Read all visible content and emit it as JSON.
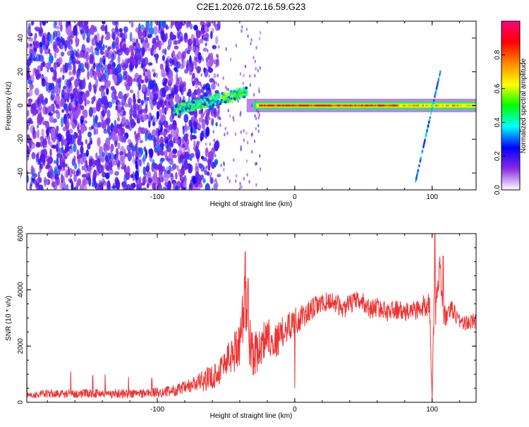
{
  "figure": {
    "title": "C2E1.2026.072.16.59.G23"
  },
  "chart_data": [
    {
      "type": "heatmap",
      "title": "C2E1.2026.072.16.59.G23",
      "xlabel": "Height of straight line (km)",
      "ylabel": "Frequency (Hz)",
      "xlim": [
        -195,
        132
      ],
      "ylim": [
        -50,
        50
      ],
      "xticks": [
        -100,
        0,
        100
      ],
      "yticks": [
        -40,
        -20,
        0,
        20,
        40
      ],
      "colorbar": {
        "label": "Normalized spectral amplitude",
        "range": [
          0.0,
          1.0
        ],
        "ticks": [
          0.0,
          0.2,
          0.4,
          0.6,
          0.8
        ],
        "tick_labels": [
          "0.0",
          "0.2",
          "0.4",
          "0.6",
          "0.8"
        ],
        "colormap": [
          "#ffffff",
          "#8a2be2",
          "#0000ff",
          "#00ffff",
          "#00ff00",
          "#ffff00",
          "#ff8800",
          "#ff0000",
          "#ff0080"
        ]
      },
      "features": [
        {
          "name": "background noise",
          "x_range": [
            -195,
            -65
          ],
          "freq_range": [
            -50,
            50
          ],
          "level": 0.2
        },
        {
          "name": "onset band",
          "x_range": [
            -88,
            -35
          ],
          "freq_center": [
            -3,
            8
          ],
          "level": 0.45
        },
        {
          "name": "carrier line",
          "x_range": [
            -30,
            132
          ],
          "freq_center": 0,
          "level": 0.85
        },
        {
          "name": "streak",
          "x_range": [
            88,
            106
          ],
          "freq_range": [
            -45,
            20
          ],
          "level": 0.3
        }
      ]
    },
    {
      "type": "line",
      "xlabel": "Height of straight line (km)",
      "ylabel": "SNR (10 * v/v)",
      "xlim": [
        -195,
        132
      ],
      "ylim": [
        0,
        6000
      ],
      "xticks": [
        -100,
        0,
        100
      ],
      "yticks": [
        0,
        2000,
        4000,
        6000
      ],
      "line_color": "#ee3333",
      "series": [
        {
          "name": "SNR",
          "x": [
            -195,
            -180,
            -160,
            -140,
            -120,
            -100,
            -90,
            -80,
            -70,
            -60,
            -55,
            -50,
            -45,
            -40,
            -36,
            -33,
            -30,
            -25,
            -20,
            -15,
            -10,
            -5,
            0,
            5,
            10,
            15,
            20,
            25,
            30,
            35,
            40,
            45,
            50,
            55,
            60,
            65,
            70,
            75,
            80,
            85,
            90,
            95,
            98,
            100,
            102,
            104,
            106,
            108,
            110,
            115,
            120,
            125,
            132
          ],
          "y": [
            250,
            300,
            300,
            320,
            300,
            350,
            400,
            500,
            700,
            900,
            1100,
            1500,
            1700,
            2200,
            3700,
            2300,
            1700,
            1900,
            2500,
            2100,
            2400,
            2700,
            2900,
            3000,
            3200,
            3400,
            3500,
            3600,
            3550,
            3300,
            3500,
            3600,
            3550,
            3300,
            3400,
            3250,
            3250,
            3300,
            3150,
            3300,
            3300,
            3400,
            3800,
            200,
            3900,
            4000,
            4700,
            3200,
            3000,
            3300,
            2900,
            2800,
            2900
          ],
          "amp": [
            120,
            150,
            150,
            160,
            170,
            180,
            200,
            250,
            350,
            450,
            500,
            600,
            700,
            900,
            1300,
            1000,
            800,
            700,
            700,
            650,
            600,
            550,
            500,
            450,
            400,
            400,
            350,
            350,
            350,
            350,
            350,
            350,
            350,
            350,
            350,
            350,
            350,
            350,
            350,
            350,
            400,
            450,
            600,
            200,
            1500,
            700,
            600,
            500,
            400,
            350,
            300,
            300,
            300
          ],
          "spikes": [
            {
              "x": -195,
              "y": 1000
            },
            {
              "x": -163,
              "y": 1100
            },
            {
              "x": -147,
              "y": 950
            },
            {
              "x": -138,
              "y": 1000
            },
            {
              "x": -121,
              "y": 900
            },
            {
              "x": -104,
              "y": 850
            },
            {
              "x": -36,
              "y": 5350
            },
            {
              "x": -34,
              "y": 4400
            },
            {
              "x": 102,
              "y": 6000
            },
            {
              "x": 108,
              "y": 5200
            },
            {
              "x": 0,
              "y": 500
            },
            {
              "x": 100,
              "y": 100
            }
          ]
        }
      ]
    }
  ]
}
